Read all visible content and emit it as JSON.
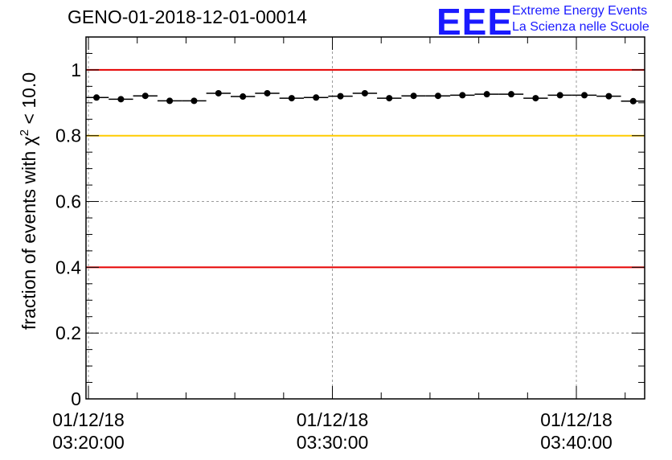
{
  "chart_data": {
    "type": "scatter",
    "title": "GENO-01-2018-12-01-00014",
    "ylabel_prefix": "fraction of events with",
    "ylabel_chi": "χ",
    "ylabel_exp": "2",
    "ylabel_suffix": "< 10.0",
    "xlabel": "",
    "ylim": [
      0,
      1.1
    ],
    "xlim_minutes": [
      -0.1,
      22.8
    ],
    "yticks": [
      0,
      0.2,
      0.4,
      0.6,
      0.8,
      1
    ],
    "ytick_labels": [
      "0",
      "0.2",
      "0.4",
      "0.6",
      "0.8",
      "1"
    ],
    "xticks": [
      {
        "minute": 0,
        "line1": "01/12/18",
        "line2": "03:20:00"
      },
      {
        "minute": 10,
        "line1": "01/12/18",
        "line2": "03:30:00"
      },
      {
        "minute": 20,
        "line1": "01/12/18",
        "line2": "03:40:00"
      }
    ],
    "bin_width_minutes": 1,
    "x_minutes": [
      0.33,
      1.33,
      2.33,
      3.33,
      4.33,
      5.33,
      6.33,
      7.33,
      8.33,
      9.33,
      10.33,
      11.33,
      12.33,
      13.33,
      14.33,
      15.33,
      16.33,
      17.33,
      18.33,
      19.33,
      20.33,
      21.33,
      22.33
    ],
    "values": [
      0.916,
      0.911,
      0.921,
      0.906,
      0.906,
      0.929,
      0.919,
      0.929,
      0.914,
      0.916,
      0.92,
      0.929,
      0.914,
      0.921,
      0.921,
      0.923,
      0.926,
      0.926,
      0.914,
      0.923,
      0.923,
      0.92,
      0.905
    ],
    "reference_lines": [
      {
        "y": 1.0,
        "color": "#e60000"
      },
      {
        "y": 0.8,
        "color": "#ffcc00"
      },
      {
        "y": 0.4,
        "color": "#e60000"
      }
    ],
    "grid": true
  },
  "logo": {
    "text": "EEE",
    "line1": "Extreme Energy Events",
    "line2": "La Scienza nelle Scuole"
  }
}
